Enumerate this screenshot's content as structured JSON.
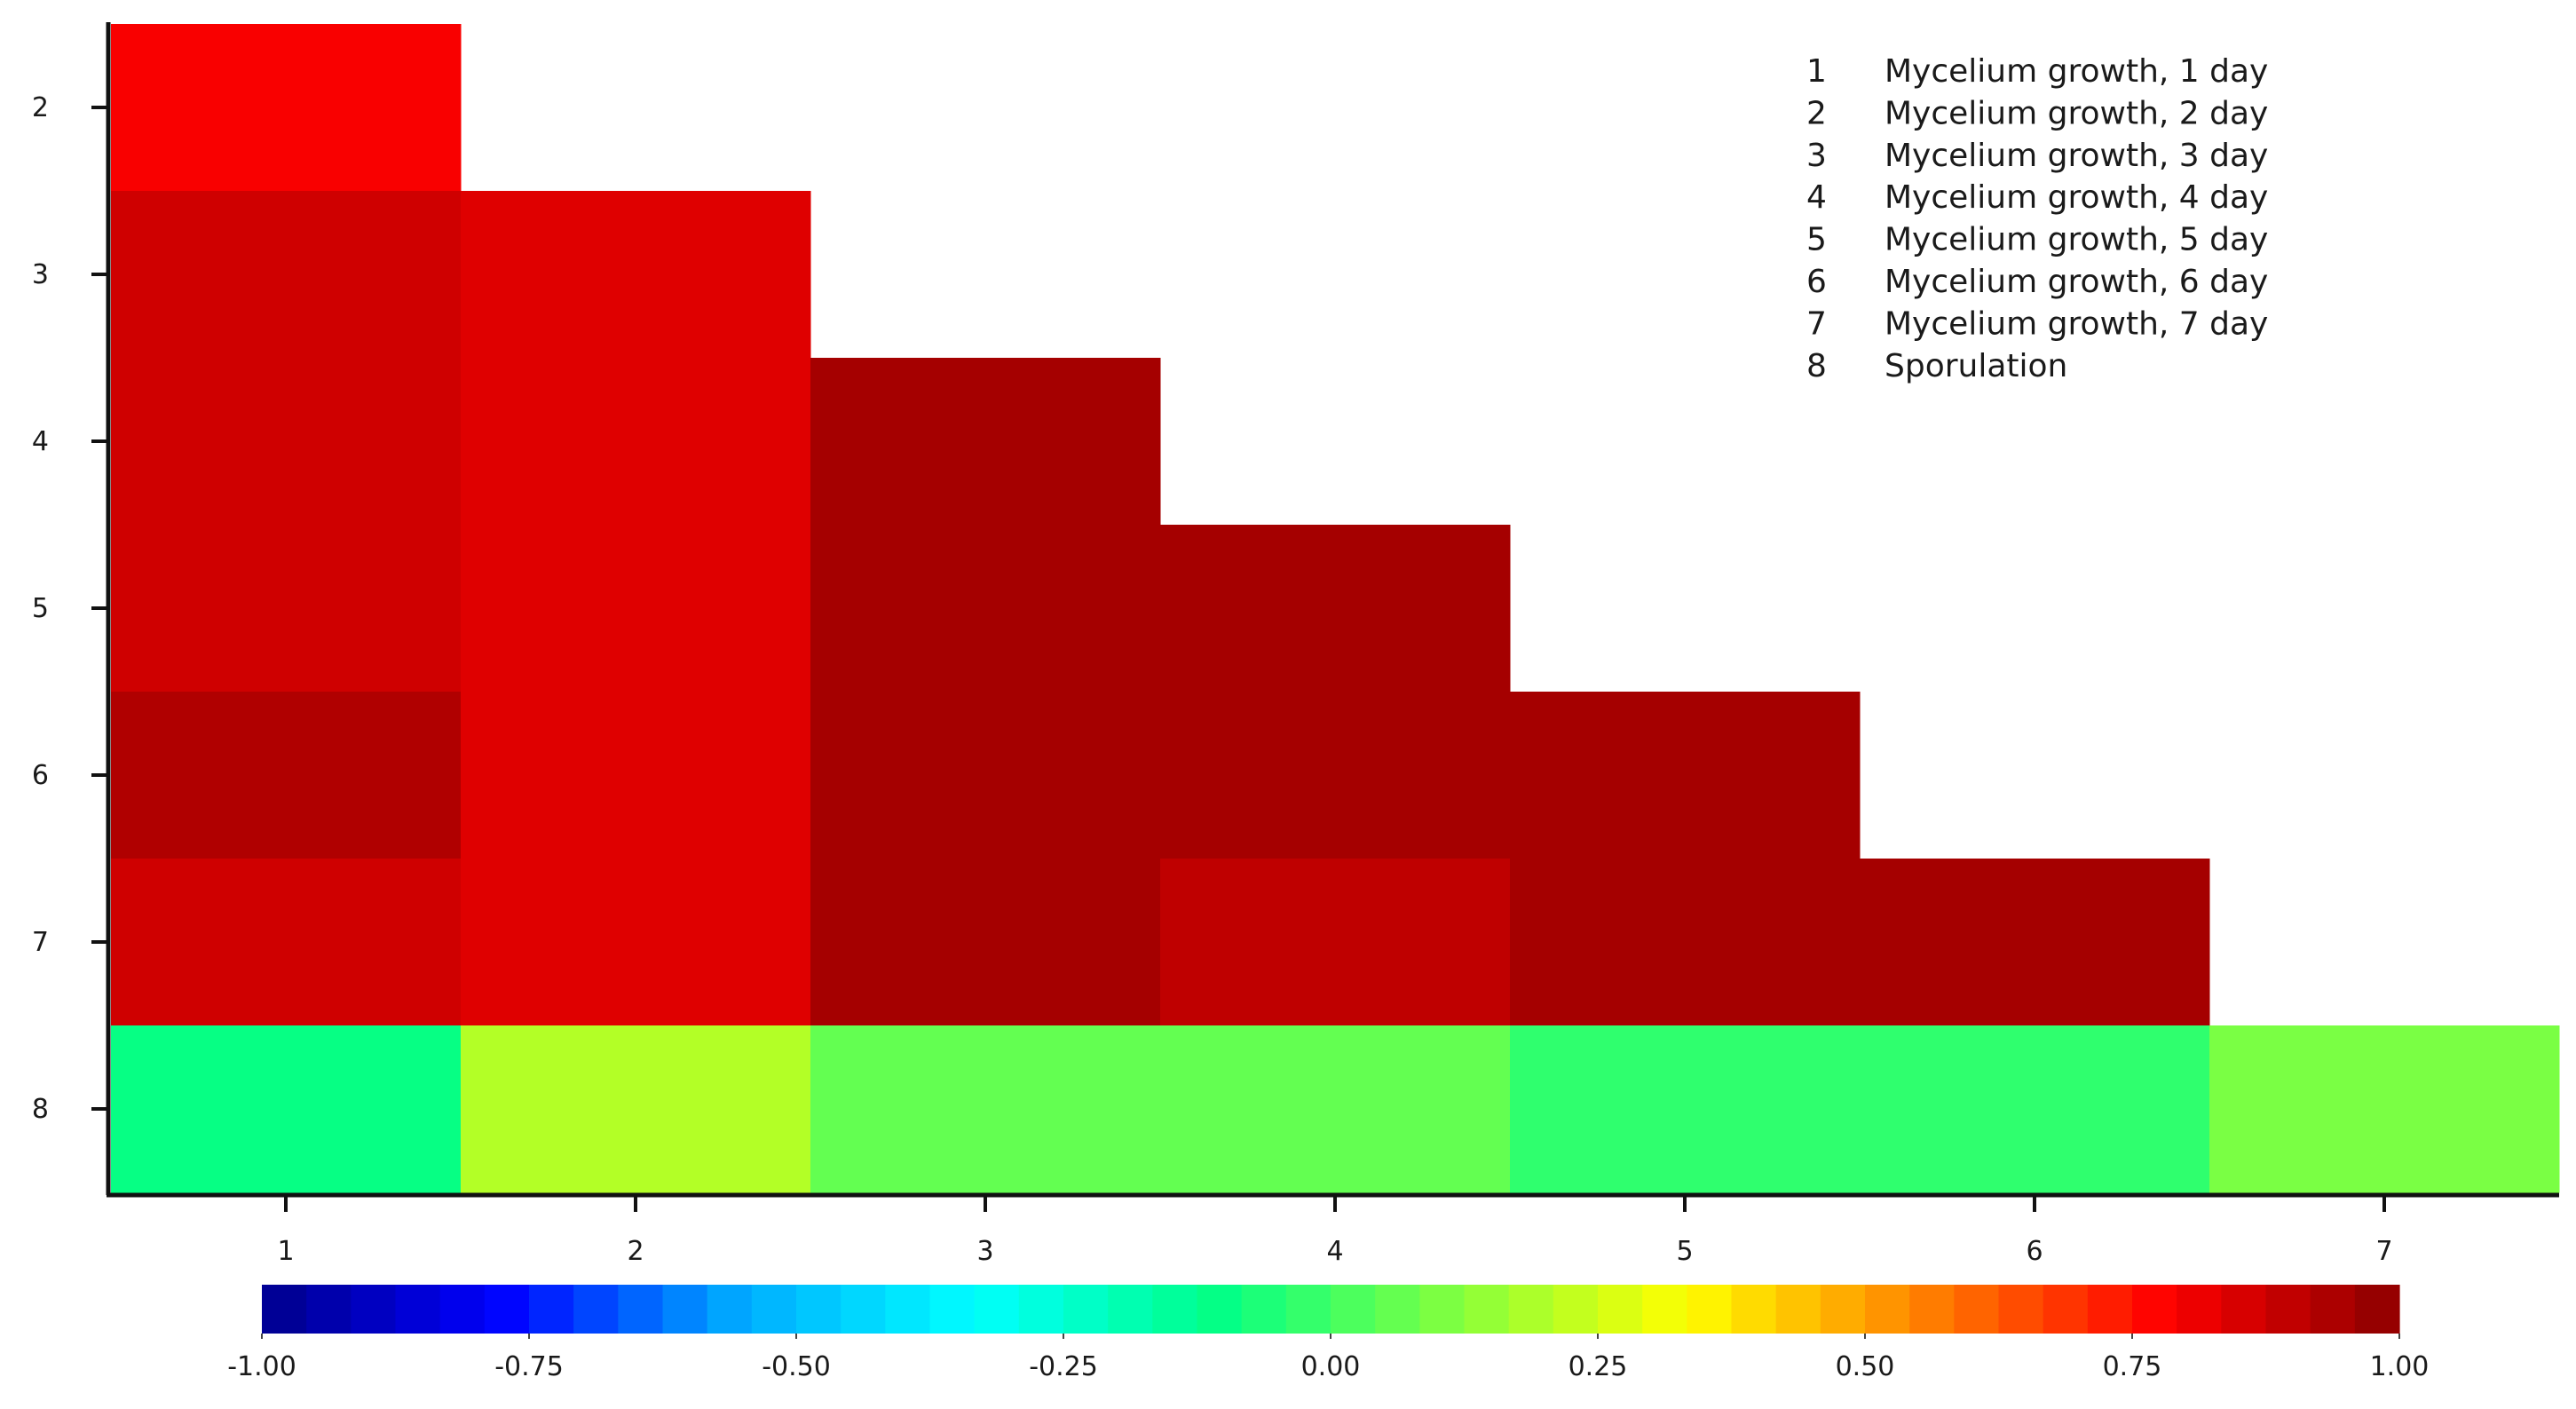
{
  "chart_data": {
    "type": "heatmap",
    "title": "",
    "xlabel": "",
    "ylabel": "",
    "x_categories": [
      "1",
      "2",
      "3",
      "4",
      "5",
      "6",
      "7"
    ],
    "y_categories": [
      "2",
      "3",
      "4",
      "5",
      "6",
      "7",
      "8"
    ],
    "lower_triangle": true,
    "cells": [
      {
        "x": "1",
        "y": "2",
        "value": 0.79
      },
      {
        "x": "1",
        "y": "3",
        "value": 0.87
      },
      {
        "x": "1",
        "y": "4",
        "value": 0.87
      },
      {
        "x": "1",
        "y": "5",
        "value": 0.87
      },
      {
        "x": "1",
        "y": "6",
        "value": 0.93
      },
      {
        "x": "1",
        "y": "7",
        "value": 0.87
      },
      {
        "x": "1",
        "y": "8",
        "value": -0.1
      },
      {
        "x": "2",
        "y": "3",
        "value": 0.84
      },
      {
        "x": "2",
        "y": "4",
        "value": 0.84
      },
      {
        "x": "2",
        "y": "5",
        "value": 0.84
      },
      {
        "x": "2",
        "y": "6",
        "value": 0.84
      },
      {
        "x": "2",
        "y": "7",
        "value": 0.84
      },
      {
        "x": "2",
        "y": "8",
        "value": 0.2
      },
      {
        "x": "3",
        "y": "4",
        "value": 0.95
      },
      {
        "x": "3",
        "y": "5",
        "value": 0.95
      },
      {
        "x": "3",
        "y": "6",
        "value": 0.95
      },
      {
        "x": "3",
        "y": "7",
        "value": 0.95
      },
      {
        "x": "3",
        "y": "8",
        "value": 0.06
      },
      {
        "x": "4",
        "y": "5",
        "value": 0.95
      },
      {
        "x": "4",
        "y": "6",
        "value": 0.95
      },
      {
        "x": "4",
        "y": "7",
        "value": 0.9
      },
      {
        "x": "4",
        "y": "8",
        "value": 0.06
      },
      {
        "x": "5",
        "y": "6",
        "value": 0.95
      },
      {
        "x": "5",
        "y": "7",
        "value": 0.95
      },
      {
        "x": "5",
        "y": "8",
        "value": -0.03
      },
      {
        "x": "6",
        "y": "7",
        "value": 0.95
      },
      {
        "x": "6",
        "y": "8",
        "value": -0.03
      },
      {
        "x": "7",
        "y": "8",
        "value": 0.1
      }
    ],
    "legend": {
      "placement": "top-right",
      "entries": [
        {
          "key": "1",
          "label": "Mycelium growth, 1 day"
        },
        {
          "key": "2",
          "label": "Mycelium growth, 2 day"
        },
        {
          "key": "3",
          "label": "Mycelium growth, 3 day"
        },
        {
          "key": "4",
          "label": "Mycelium growth, 4 day"
        },
        {
          "key": "5",
          "label": "Mycelium growth, 5 day"
        },
        {
          "key": "6",
          "label": "Mycelium growth, 6 day"
        },
        {
          "key": "7",
          "label": "Mycelium growth, 7 day"
        },
        {
          "key": "8",
          "label": "Sporulation"
        }
      ]
    },
    "colorbar": {
      "range": [
        -1,
        1
      ],
      "ticks": [
        "-1.00",
        "-0.75",
        "-0.50",
        "-0.25",
        "0.00",
        "0.25",
        "0.50",
        "0.75",
        "1.00"
      ],
      "colors": [
        "#00008b",
        "#0000ff",
        "#00aaff",
        "#00ffff",
        "#00ff88",
        "#80ff40",
        "#ffff00",
        "#ff8000",
        "#ff0000",
        "#8b0000"
      ]
    },
    "grid": false
  }
}
